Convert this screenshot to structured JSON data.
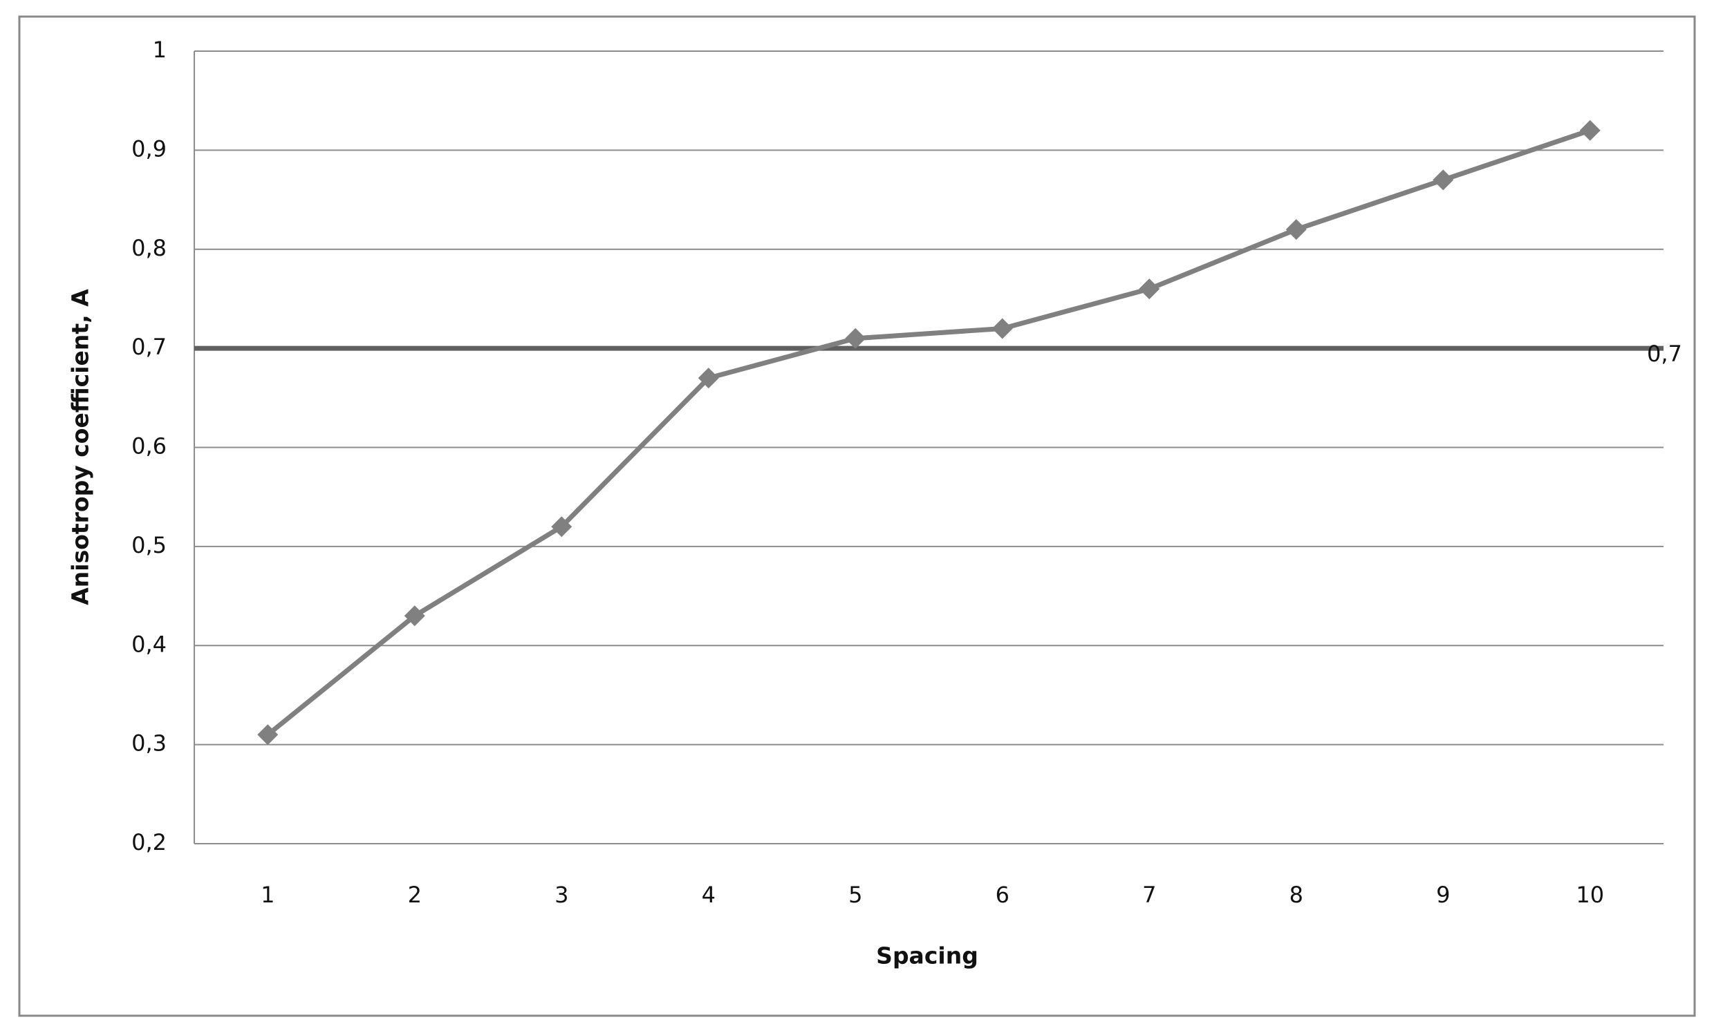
{
  "chart_data": {
    "type": "line",
    "xlabel": "Spacing",
    "ylabel": "Anisotropy coefficient, A",
    "categories": [
      "1",
      "2",
      "3",
      "4",
      "5",
      "6",
      "7",
      "8",
      "9",
      "10"
    ],
    "values": [
      0.31,
      0.43,
      0.52,
      0.67,
      0.71,
      0.72,
      0.76,
      0.82,
      0.87,
      0.92
    ],
    "color": "#808080",
    "marker": "diamond",
    "ylim": [
      0.2,
      1
    ],
    "yticks": [
      {
        "value": 0.2,
        "label": "0,2"
      },
      {
        "value": 0.3,
        "label": "0,3"
      },
      {
        "value": 0.4,
        "label": "0,4"
      },
      {
        "value": 0.5,
        "label": "0,5"
      },
      {
        "value": 0.6,
        "label": "0,6"
      },
      {
        "value": 0.7,
        "label": "0,7"
      },
      {
        "value": 0.8,
        "label": "0,8"
      },
      {
        "value": 0.9,
        "label": "0,9"
      },
      1
    ],
    "grid": true,
    "reference_line": {
      "value": 0.7,
      "label": "0,7",
      "color": "#606060"
    }
  }
}
